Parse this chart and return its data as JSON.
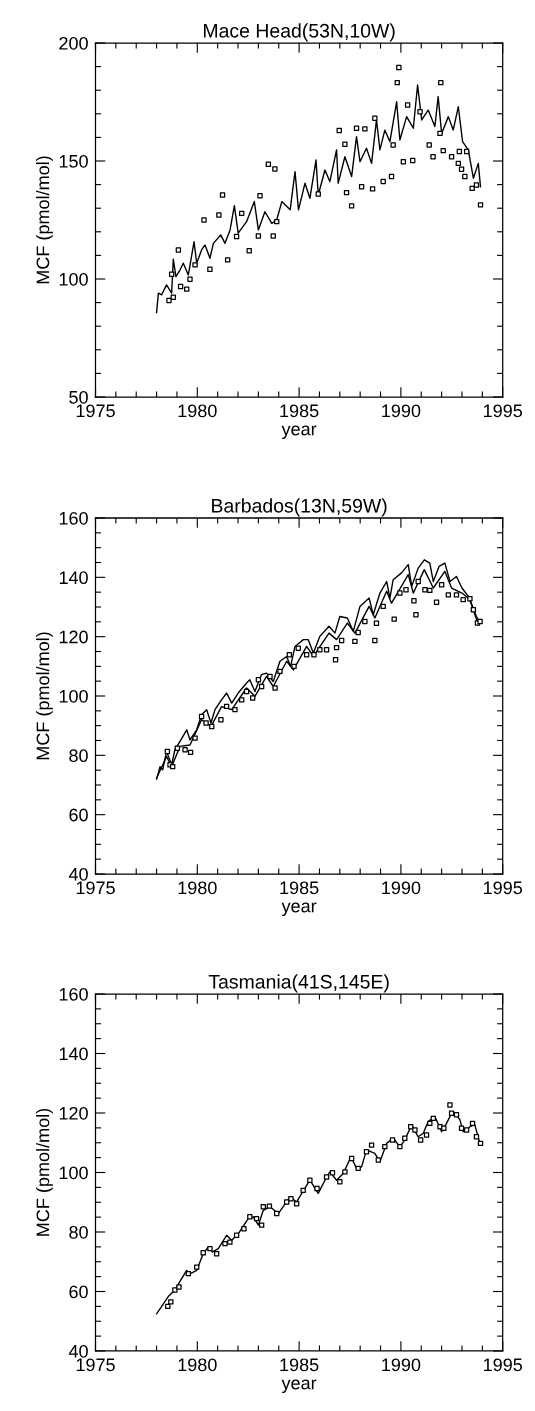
{
  "chart_data": [
    {
      "type": "line",
      "title": "Mace Head(53N,10W)",
      "xlabel": "year",
      "ylabel": "MCF (pmol/mol)",
      "xlim": [
        1975,
        1995
      ],
      "ylim": [
        50,
        200
      ],
      "xticks": [
        1975,
        {
          "value": 1976,
          "label": null
        },
        {
          "value": 1977,
          "label": null
        },
        {
          "value": 1978,
          "label": null
        },
        {
          "value": 1979,
          "label": null
        },
        1980,
        {
          "value": 1981,
          "label": null
        },
        {
          "value": 1982,
          "label": null
        },
        {
          "value": 1983,
          "label": null
        },
        {
          "value": 1984,
          "label": null
        },
        1985,
        {
          "value": 1986,
          "label": null
        },
        {
          "value": 1987,
          "label": null
        },
        {
          "value": 1988,
          "label": null
        },
        {
          "value": 1989,
          "label": null
        },
        1990,
        {
          "value": 1991,
          "label": null
        },
        {
          "value": 1992,
          "label": null
        },
        {
          "value": 1993,
          "label": null
        },
        {
          "value": 1994,
          "label": null
        },
        1995
      ],
      "yticks": [
        50,
        {
          "value": 60,
          "label": null
        },
        {
          "value": 70,
          "label": null
        },
        {
          "value": 80,
          "label": null
        },
        {
          "value": 90,
          "label": null
        },
        100,
        {
          "value": 110,
          "label": null
        },
        {
          "value": 120,
          "label": null
        },
        {
          "value": 130,
          "label": null
        },
        {
          "value": 140,
          "label": null
        },
        150,
        {
          "value": 160,
          "label": null
        },
        {
          "value": 170,
          "label": null
        },
        {
          "value": 180,
          "label": null
        },
        {
          "value": 190,
          "label": null
        },
        200
      ],
      "series": [
        {
          "color": "#000000",
          "x": [
            1978.0,
            1978.09,
            1978.25,
            1978.49,
            1978.74,
            1978.82,
            1978.95,
            1979.15,
            1979.31,
            1979.56,
            1979.84,
            1979.97,
            1980.21,
            1980.38,
            1980.62,
            1980.79,
            1981.15,
            1981.36,
            1981.61,
            1981.82,
            1982.01,
            1982.42,
            1982.8,
            1983.0,
            1983.32,
            1983.66,
            1983.9,
            1984.15,
            1984.56,
            1984.8,
            1984.97,
            1985.29,
            1985.53,
            1985.83,
            1985.94,
            1986.27,
            1986.51,
            1986.84,
            1986.92,
            1987.25,
            1987.58,
            1987.82,
            1987.99,
            1988.31,
            1988.56,
            1988.8,
            1988.97,
            1989.21,
            1989.46,
            1989.79,
            1989.95,
            1990.28,
            1990.61,
            1990.82,
            1991.02,
            1991.34,
            1991.67,
            1991.83,
            1992.0,
            1992.33,
            1992.57,
            1992.82,
            1993.03,
            1993.31,
            1993.56,
            1993.8,
            1993.91
          ],
          "values": [
            85.8,
            94.0,
            93.3,
            97.5,
            94,
            108.4,
            101,
            103.8,
            106.7,
            101.7,
            115.8,
            106.7,
            112.3,
            114.4,
            108.8,
            115.1,
            118.7,
            115.1,
            120.8,
            131.1,
            119.4,
            124.3,
            132.8,
            120.8,
            128.5,
            123.6,
            125,
            132.8,
            129.3,
            145.5,
            129.3,
            140.6,
            134.2,
            150.4,
            135.6,
            146.2,
            141.3,
            154.7,
            140.6,
            151.8,
            143.4,
            160.3,
            149.7,
            155.4,
            149,
            167.4,
            154.7,
            163.1,
            158.2,
            175.1,
            158.9,
            168.8,
            163.9,
            182.2,
            167.4,
            171.6,
            164.6,
            177.3,
            161.7,
            168.8,
            163.1,
            173,
            158.2,
            154.7,
            142.7,
            149,
            139.1
          ]
        },
        {
          "type": "scatter",
          "color": "#000000",
          "marker": "square",
          "x": [
            1978.61,
            1978.82,
            1978.74,
            1979.07,
            1979.18,
            1979.48,
            1979.64,
            1979.89,
            1980.33,
            1980.62,
            1981.06,
            1981.24,
            1981.49,
            1981.93,
            1982.18,
            1982.55,
            1983.0,
            1983.08,
            1983.49,
            1983.73,
            1983.81,
            1983.9,
            1985.94,
            1986.97,
            1987.25,
            1987.33,
            1987.58,
            1987.82,
            1988.23,
            1988.07,
            1988.61,
            1988.72,
            1989.13,
            1989.54,
            1989.62,
            1989.82,
            1989.9,
            1990.12,
            1990.33,
            1990.58,
            1990.94,
            1991.39,
            1991.58,
            1991.96,
            1991.92,
            1992.08,
            1992.49,
            1992.82,
            1992.98,
            1993.14,
            1993.5,
            1993.71,
            1993.91,
            1993.23,
            1992.87
          ],
          "values": [
            90.9,
            92.3,
            102,
            112.3,
            96.8,
            95.7,
            99.9,
            106,
            125,
            104.1,
            127.1,
            135.6,
            108.1,
            118,
            127.8,
            112,
            118.2,
            135.3,
            148.6,
            118.2,
            146.6,
            124.3,
            136,
            162.9,
            157.1,
            136.6,
            131,
            163.9,
            163.6,
            139.1,
            138.2,
            168.1,
            141.3,
            143.4,
            156.8,
            183.2,
            189.6,
            149.7,
            173.7,
            150.2,
            170.9,
            156.8,
            151.8,
            183.2,
            161.7,
            154.4,
            151.8,
            149,
            146.5,
            143.4,
            138.4,
            139.8,
            131.4,
            154,
            154
          ]
        }
      ]
    },
    {
      "type": "line",
      "title": "Barbados(13N,59W)",
      "xlabel": "year",
      "ylabel": "MCF (pmol/mol)",
      "xlim": [
        1975,
        1995
      ],
      "ylim": [
        40,
        160
      ],
      "xticks": [
        1975,
        {
          "value": 1976,
          "label": null
        },
        {
          "value": 1977,
          "label": null
        },
        {
          "value": 1978,
          "label": null
        },
        {
          "value": 1979,
          "label": null
        },
        1980,
        {
          "value": 1981,
          "label": null
        },
        {
          "value": 1982,
          "label": null
        },
        {
          "value": 1983,
          "label": null
        },
        {
          "value": 1984,
          "label": null
        },
        1985,
        {
          "value": 1986,
          "label": null
        },
        {
          "value": 1987,
          "label": null
        },
        {
          "value": 1988,
          "label": null
        },
        {
          "value": 1989,
          "label": null
        },
        1990,
        {
          "value": 1991,
          "label": null
        },
        {
          "value": 1992,
          "label": null
        },
        {
          "value": 1993,
          "label": null
        },
        {
          "value": 1994,
          "label": null
        },
        1995
      ],
      "yticks": [
        40,
        {
          "value": 45,
          "label": null
        },
        {
          "value": 50,
          "label": null
        },
        {
          "value": 55,
          "label": null
        },
        60,
        {
          "value": 65,
          "label": null
        },
        {
          "value": 70,
          "label": null
        },
        {
          "value": 75,
          "label": null
        },
        80,
        {
          "value": 85,
          "label": null
        },
        {
          "value": 90,
          "label": null
        },
        {
          "value": 95,
          "label": null
        },
        100,
        {
          "value": 105,
          "label": null
        },
        {
          "value": 110,
          "label": null
        },
        {
          "value": 115,
          "label": null
        },
        120,
        {
          "value": 125,
          "label": null
        },
        {
          "value": 130,
          "label": null
        },
        {
          "value": 135,
          "label": null
        },
        140,
        {
          "value": 145,
          "label": null
        },
        {
          "value": 150,
          "label": null
        },
        {
          "value": 155,
          "label": null
        },
        160
      ],
      "series": [
        {
          "color": "#000000",
          "x": [
            1978.0,
            1978.17,
            1978.3,
            1978.49,
            1978.74,
            1978.9,
            1979.15,
            1979.48,
            1979.64,
            1979.97,
            1980.21,
            1980.46,
            1980.67,
            1980.87,
            1981.19,
            1981.44,
            1981.69,
            1982.01,
            1982.42,
            1982.58,
            1982.83,
            1983.15,
            1983.4,
            1983.73,
            1984.06,
            1984.39,
            1984.58,
            1984.8,
            1985.21,
            1985.45,
            1985.7,
            1986.02,
            1986.47,
            1986.76,
            1987.0,
            1987.37,
            1987.66,
            1987.99,
            1988.44,
            1988.64,
            1988.97,
            1989.3,
            1989.46,
            1989.62,
            1990.03,
            1990.36,
            1990.53,
            1990.85,
            1991.15,
            1991.42,
            1991.59,
            1991.88,
            1992.16,
            1992.41,
            1992.73,
            1993.0,
            1993.31,
            1993.56,
            1993.8,
            1993.91
          ],
          "values": [
            72.0,
            76.2,
            75.1,
            81.3,
            76.8,
            81.9,
            84.7,
            88.6,
            85.2,
            88.6,
            93.7,
            95.4,
            90.9,
            95.4,
            98.7,
            101,
            97.6,
            101,
            104.4,
            105.5,
            101.5,
            107.2,
            107.7,
            104.9,
            111.7,
            113.3,
            110,
            116.7,
            119,
            119,
            114.5,
            120.1,
            123.5,
            121.2,
            126.8,
            126.3,
            121.8,
            130.2,
            133,
            127.4,
            134.7,
            138.6,
            133,
            139.2,
            141.5,
            144.3,
            137,
            143.1,
            145.9,
            144.8,
            138.6,
            143.7,
            144.8,
            138.6,
            140.3,
            136.4,
            133.6,
            129.1,
            124,
            125.7
          ]
        },
        {
          "color": "#000000",
          "x": [
            1978.0,
            1978.49,
            1978.74,
            1979.15,
            1979.64,
            1980.21,
            1980.67,
            1981.19,
            1981.69,
            1982.42,
            1982.83,
            1983.4,
            1983.73,
            1984.39,
            1984.72,
            1985.37,
            1985.7,
            1986.47,
            1986.84,
            1987.37,
            1987.74,
            1988.44,
            1988.72,
            1989.3,
            1989.54,
            1990.36,
            1990.61,
            1991.15,
            1991.59,
            1992.16,
            1992.49,
            1993.0,
            1993.39,
            1993.71,
            1993.91
          ],
          "values": [
            72.3,
            79.6,
            76.2,
            83,
            83.5,
            92,
            89.7,
            96.4,
            95.4,
            102.7,
            99.9,
            106.6,
            103.2,
            111.7,
            108.8,
            116.7,
            113.4,
            121.2,
            119,
            124.6,
            121.2,
            130.2,
            126.3,
            135.3,
            131.3,
            140.9,
            134.7,
            142.6,
            136.4,
            142,
            136.4,
            134.7,
            132.5,
            126.8,
            124.6
          ]
        },
        {
          "type": "scatter",
          "color": "#000000",
          "marker": "square",
          "x": [
            1978.53,
            1978.66,
            1978.79,
            1979.02,
            1979.4,
            1979.67,
            1979.89,
            1980.21,
            1980.43,
            1980.71,
            1981.16,
            1981.44,
            1981.85,
            1982.18,
            1982.42,
            1982.72,
            1983.0,
            1983.16,
            1983.57,
            1983.82,
            1984.06,
            1984.52,
            1984.75,
            1984.96,
            1985.37,
            1985.73,
            1986.02,
            1986.35,
            1986.79,
            1986.84,
            1987.09,
            1987.74,
            1987.9,
            1988.23,
            1988.72,
            1988.8,
            1989.13,
            1989.67,
            1989.95,
            1990.25,
            1990.64,
            1990.74,
            1990.85,
            1991.18,
            1991.42,
            1991.75,
            1992.0,
            1992.33,
            1992.73,
            1993.06,
            1993.39,
            1993.56,
            1993.76,
            1993.89
          ],
          "values": [
            81.3,
            76.8,
            76.2,
            82.4,
            81.9,
            81,
            85.8,
            93.1,
            90.9,
            89.7,
            92,
            96.5,
            95.4,
            98.7,
            101.5,
            99.3,
            105.5,
            103.2,
            106.6,
            102.7,
            108.3,
            113.9,
            110,
            116.1,
            113.9,
            113.9,
            115.6,
            115.6,
            112.2,
            116.3,
            118.7,
            118.4,
            121.4,
            125.1,
            118.7,
            124.5,
            130.2,
            125.9,
            134.7,
            135.8,
            132.1,
            127.4,
            138.6,
            135.8,
            135.6,
            131.6,
            137.5,
            134.1,
            134.1,
            132.5,
            132.8,
            129.1,
            124.6,
            125.1
          ]
        }
      ]
    },
    {
      "type": "line",
      "title": "Tasmania(41S,145E)",
      "xlabel": "year",
      "ylabel": "MCF (pmol/mol)",
      "xlim": [
        1975,
        1995
      ],
      "ylim": [
        40,
        160
      ],
      "xticks": [
        1975,
        {
          "value": 1976,
          "label": null
        },
        {
          "value": 1977,
          "label": null
        },
        {
          "value": 1978,
          "label": null
        },
        {
          "value": 1979,
          "label": null
        },
        1980,
        {
          "value": 1981,
          "label": null
        },
        {
          "value": 1982,
          "label": null
        },
        {
          "value": 1983,
          "label": null
        },
        {
          "value": 1984,
          "label": null
        },
        1985,
        {
          "value": 1986,
          "label": null
        },
        {
          "value": 1987,
          "label": null
        },
        {
          "value": 1988,
          "label": null
        },
        {
          "value": 1989,
          "label": null
        },
        1990,
        {
          "value": 1991,
          "label": null
        },
        {
          "value": 1992,
          "label": null
        },
        {
          "value": 1993,
          "label": null
        },
        {
          "value": 1994,
          "label": null
        },
        1995
      ],
      "yticks": [
        40,
        {
          "value": 45,
          "label": null
        },
        {
          "value": 50,
          "label": null
        },
        {
          "value": 55,
          "label": null
        },
        60,
        {
          "value": 65,
          "label": null
        },
        {
          "value": 70,
          "label": null
        },
        {
          "value": 75,
          "label": null
        },
        80,
        {
          "value": 85,
          "label": null
        },
        {
          "value": 90,
          "label": null
        },
        {
          "value": 95,
          "label": null
        },
        100,
        {
          "value": 105,
          "label": null
        },
        {
          "value": 110,
          "label": null
        },
        {
          "value": 115,
          "label": null
        },
        120,
        {
          "value": 125,
          "label": null
        },
        {
          "value": 130,
          "label": null
        },
        {
          "value": 135,
          "label": null
        },
        140,
        {
          "value": 145,
          "label": null
        },
        {
          "value": 150,
          "label": null
        },
        {
          "value": 155,
          "label": null
        },
        160
      ],
      "series": [
        {
          "color": "#000000",
          "x": [
            1978.0,
            1978.3,
            1978.6,
            1978.9,
            1979.23,
            1979.48,
            1979.64,
            1979.97,
            1980.29,
            1980.54,
            1980.75,
            1981.03,
            1981.44,
            1981.69,
            1982.01,
            1982.5,
            1982.75,
            1983.0,
            1983.24,
            1983.57,
            1983.98,
            1984.22,
            1984.55,
            1984.88,
            1985.13,
            1985.53,
            1985.94,
            1986.27,
            1986.51,
            1986.84,
            1987.17,
            1987.55,
            1987.82,
            1988.07,
            1988.31,
            1988.72,
            1988.97,
            1989.3,
            1989.62,
            1989.95,
            1990.19,
            1990.53,
            1990.85,
            1991.1,
            1991.34,
            1991.67,
            1992.0,
            1992.24,
            1992.49,
            1992.73,
            1992.9,
            1993.06,
            1993.39,
            1993.63,
            1993.88
          ],
          "values": [
            52.5,
            55.5,
            58.5,
            60.5,
            64.3,
            67.1,
            65.9,
            67.1,
            72.7,
            75,
            73.3,
            74.4,
            78.9,
            77.2,
            79.4,
            84.5,
            85.1,
            82.3,
            87.3,
            88.5,
            86.2,
            88.5,
            91.8,
            90.1,
            93,
            97.4,
            93,
            97.4,
            100.2,
            97.4,
            99.7,
            105.3,
            101.4,
            101.9,
            107.6,
            106.4,
            103.6,
            109.8,
            111.5,
            108.7,
            110.9,
            116,
            112,
            113.2,
            117.1,
            118.8,
            113.7,
            116.5,
            119.9,
            119.4,
            117.7,
            113.7,
            115.4,
            116,
            109.8
          ]
        },
        {
          "type": "scatter",
          "color": "#000000",
          "marker": "square",
          "x": [
            1978.55,
            1978.7,
            1978.9,
            1979.1,
            1979.56,
            1979.97,
            1980.29,
            1980.62,
            1980.95,
            1981.36,
            1981.6,
            1981.93,
            1982.29,
            1982.58,
            1982.91,
            1983.16,
            1983.24,
            1983.54,
            1983.9,
            1984.39,
            1984.6,
            1984.88,
            1985.2,
            1985.53,
            1985.88,
            1986.35,
            1986.64,
            1987.0,
            1987.25,
            1987.58,
            1987.9,
            1988.31,
            1988.56,
            1988.89,
            1989.21,
            1989.59,
            1989.95,
            1990.19,
            1990.48,
            1990.69,
            1990.97,
            1991.26,
            1991.42,
            1991.59,
            1991.92,
            1992.11,
            1992.41,
            1992.49,
            1992.73,
            1992.98,
            1993.23,
            1993.52,
            1993.71,
            1993.91
          ],
          "values": [
            55,
            56.5,
            60.5,
            61.5,
            66,
            68.2,
            73,
            74.4,
            72.7,
            76.1,
            76.6,
            78.9,
            81.1,
            85.1,
            84.5,
            82.3,
            88.5,
            88.7,
            86.2,
            90.1,
            91.2,
            89.5,
            94,
            97.4,
            94.6,
            98.5,
            99.9,
            96.9,
            100.2,
            104.7,
            101.4,
            107,
            109.2,
            104.2,
            108.7,
            110.9,
            108.7,
            111.5,
            115.4,
            114.3,
            110.9,
            112.6,
            116.5,
            118.2,
            115.4,
            114.9,
            122.7,
            119.9,
            119.4,
            114.9,
            114.3,
            116.5,
            112,
            109.8
          ]
        }
      ]
    }
  ]
}
